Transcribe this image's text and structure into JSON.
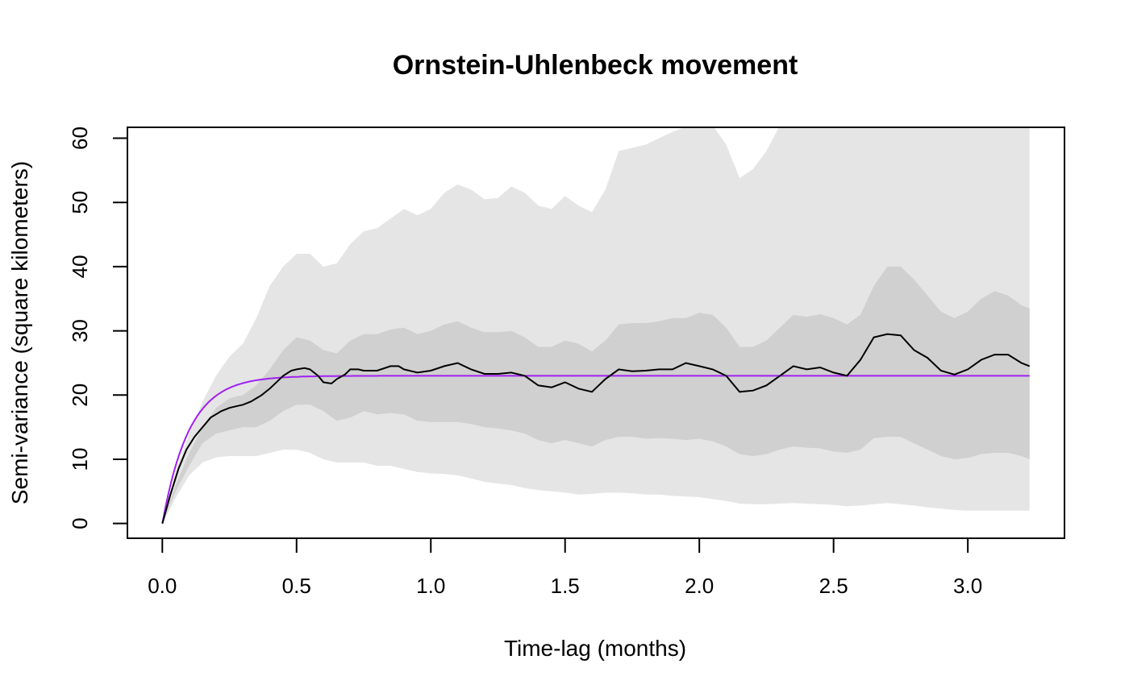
{
  "chart_data": {
    "type": "line",
    "title": "Ornstein-Uhlenbeck movement",
    "xlabel": "Time-lag (months)",
    "ylabel": "Semi-variance (square kilometers)",
    "xlim": [
      -0.13,
      3.36
    ],
    "ylim": [
      -2.3,
      61.7
    ],
    "x_ticks": [
      "0.0",
      "0.5",
      "1.0",
      "1.5",
      "2.0",
      "2.5",
      "3.0"
    ],
    "y_ticks": [
      "0",
      "10",
      "20",
      "30",
      "40",
      "50",
      "60"
    ],
    "grid": false,
    "legend": "none",
    "colors": {
      "outer_band": "#e5e5e5",
      "inner_band": "#d0d0d0",
      "empirical_line": "#000000",
      "model_line": "#a020f0"
    },
    "series": [
      {
        "role": "empirical",
        "x": [
          0,
          0.03,
          0.06,
          0.09,
          0.12,
          0.15,
          0.18,
          0.2,
          0.22,
          0.25,
          0.28,
          0.3,
          0.33,
          0.37,
          0.4,
          0.43,
          0.45,
          0.48,
          0.5,
          0.53,
          0.55,
          0.58,
          0.6,
          0.63,
          0.65,
          0.68,
          0.7,
          0.73,
          0.75,
          0.8,
          0.85,
          0.88,
          0.9,
          0.95,
          1.0,
          1.05,
          1.1,
          1.15,
          1.2,
          1.25,
          1.3,
          1.35,
          1.4,
          1.45,
          1.5,
          1.55,
          1.6,
          1.65,
          1.7,
          1.75,
          1.8,
          1.85,
          1.9,
          1.95,
          2.0,
          2.05,
          2.1,
          2.15,
          2.2,
          2.25,
          2.3,
          2.35,
          2.4,
          2.45,
          2.5,
          2.55,
          2.6,
          2.65,
          2.7,
          2.75,
          2.8,
          2.85,
          2.9,
          2.95,
          3.0,
          3.05,
          3.1,
          3.15,
          3.2,
          3.23
        ],
        "y": [
          0,
          4.5,
          8.5,
          11.5,
          13.5,
          15,
          16.5,
          17,
          17.5,
          18,
          18.3,
          18.5,
          19,
          20,
          21,
          22.2,
          23,
          23.8,
          24,
          24.2,
          24,
          23,
          22,
          21.8,
          22.5,
          23.2,
          24,
          24,
          23.8,
          23.8,
          24.5,
          24.5,
          24,
          23.5,
          23.8,
          24.5,
          25,
          24,
          23.3,
          23.3,
          23.5,
          23,
          21.5,
          21.2,
          22,
          21,
          20.5,
          22.5,
          24,
          23.7,
          23.8,
          24,
          24,
          25,
          24.5,
          24,
          23,
          20.5,
          20.7,
          21.5,
          23,
          24.5,
          24,
          24.3,
          23.5,
          23,
          25.5,
          29,
          29.5,
          29.3,
          27,
          25.8,
          23.8,
          23.2,
          24,
          25.5,
          26.3,
          26.3,
          25,
          24.5
        ]
      },
      {
        "role": "model",
        "function": "23 * (1 - exp(-x / 0.1))",
        "asymptote": 23
      }
    ],
    "bands": [
      {
        "level": "outer",
        "x": [
          0,
          0.05,
          0.1,
          0.15,
          0.2,
          0.25,
          0.3,
          0.35,
          0.4,
          0.45,
          0.5,
          0.55,
          0.6,
          0.65,
          0.7,
          0.75,
          0.8,
          0.85,
          0.9,
          0.95,
          1.0,
          1.05,
          1.1,
          1.15,
          1.2,
          1.25,
          1.3,
          1.35,
          1.4,
          1.45,
          1.5,
          1.55,
          1.6,
          1.65,
          1.7,
          1.75,
          1.8,
          1.85,
          1.9,
          1.95,
          2.0,
          2.05,
          2.1,
          2.15,
          2.2,
          2.25,
          2.3,
          2.35,
          2.4,
          2.45,
          2.5,
          2.55,
          2.6,
          2.65,
          2.7,
          2.75,
          2.8,
          2.85,
          2.9,
          2.95,
          3.0,
          3.05,
          3.1,
          3.15,
          3.2,
          3.23
        ],
        "upper": [
          0,
          8,
          14,
          19,
          23,
          26,
          28,
          32,
          37,
          40,
          42,
          42,
          40,
          40.5,
          43.5,
          45.5,
          46,
          47.5,
          49,
          48,
          49,
          51.5,
          52.8,
          52,
          50.5,
          50.7,
          52.5,
          51.5,
          49.5,
          49,
          51,
          49.5,
          48.5,
          52,
          58,
          58.5,
          59,
          60,
          61,
          61.8,
          62,
          62,
          59,
          53.8,
          55.2,
          58,
          62,
          62,
          62,
          62,
          62,
          62,
          62,
          62,
          62,
          62,
          62,
          62,
          62,
          62,
          62,
          62,
          62,
          62,
          62,
          62
        ],
        "lower": [
          0,
          4,
          7.5,
          9.5,
          10.3,
          10.5,
          10.5,
          10.5,
          11,
          11.5,
          11.5,
          11,
          10,
          9.5,
          9.5,
          9.5,
          9,
          9,
          8.5,
          8,
          7.8,
          7.7,
          7.5,
          7,
          6.5,
          6.2,
          6,
          5.5,
          5.2,
          5,
          4.8,
          4.5,
          4.6,
          4.8,
          4.8,
          4.7,
          4.5,
          4.5,
          4.3,
          4.2,
          4.1,
          3.8,
          3.5,
          3.1,
          3,
          3,
          3.1,
          3.2,
          3.1,
          3,
          2.9,
          2.7,
          2.8,
          3,
          3.2,
          3,
          2.8,
          2.5,
          2.3,
          2.1,
          2,
          2,
          2,
          2,
          2,
          2
        ]
      },
      {
        "level": "inner",
        "x": [
          0,
          0.05,
          0.1,
          0.15,
          0.2,
          0.25,
          0.3,
          0.35,
          0.4,
          0.45,
          0.5,
          0.55,
          0.6,
          0.65,
          0.7,
          0.75,
          0.8,
          0.85,
          0.9,
          0.95,
          1.0,
          1.05,
          1.1,
          1.15,
          1.2,
          1.25,
          1.3,
          1.35,
          1.4,
          1.45,
          1.5,
          1.55,
          1.6,
          1.65,
          1.7,
          1.75,
          1.8,
          1.85,
          1.9,
          1.95,
          2.0,
          2.05,
          2.1,
          2.15,
          2.2,
          2.25,
          2.3,
          2.35,
          2.4,
          2.45,
          2.5,
          2.55,
          2.6,
          2.65,
          2.7,
          2.75,
          2.8,
          2.85,
          2.9,
          2.95,
          3.0,
          3.05,
          3.1,
          3.15,
          3.2,
          3.23
        ],
        "upper": [
          0,
          6,
          11,
          15,
          18,
          19.5,
          20,
          21.5,
          24,
          27,
          29,
          28.5,
          27,
          26.5,
          28.5,
          29.5,
          29.5,
          30.2,
          30.5,
          29.5,
          30,
          31,
          31.5,
          30.5,
          29.8,
          29.8,
          30,
          29,
          27.5,
          27.5,
          28.5,
          28,
          26.8,
          28.5,
          31,
          31.2,
          31.2,
          31.5,
          32,
          32,
          32.8,
          32.5,
          30.5,
          27.5,
          27.5,
          28.5,
          30.5,
          32.5,
          32.2,
          32.6,
          32,
          31,
          32.5,
          37,
          40,
          40,
          38,
          35.5,
          33,
          32,
          33,
          35,
          36.2,
          35.5,
          34,
          33.5
        ],
        "lower": [
          0,
          5,
          9,
          12.5,
          14,
          14.5,
          15,
          15,
          16,
          17.5,
          18.5,
          18.5,
          17.5,
          16,
          16.5,
          17.5,
          17,
          17.2,
          17,
          16,
          15.8,
          15.8,
          15.8,
          15.5,
          15,
          14.8,
          14.5,
          14,
          13,
          12.5,
          13,
          12.5,
          12,
          13,
          13.5,
          13.5,
          13.2,
          13.3,
          13.2,
          13,
          13.2,
          12.8,
          12,
          10.8,
          10.5,
          10.8,
          11.5,
          12,
          11.8,
          11.7,
          11.2,
          11,
          11.5,
          13.3,
          13.5,
          13.5,
          12.5,
          11.5,
          10.5,
          10,
          10.2,
          10.8,
          11,
          11,
          10.5,
          10
        ]
      }
    ]
  }
}
